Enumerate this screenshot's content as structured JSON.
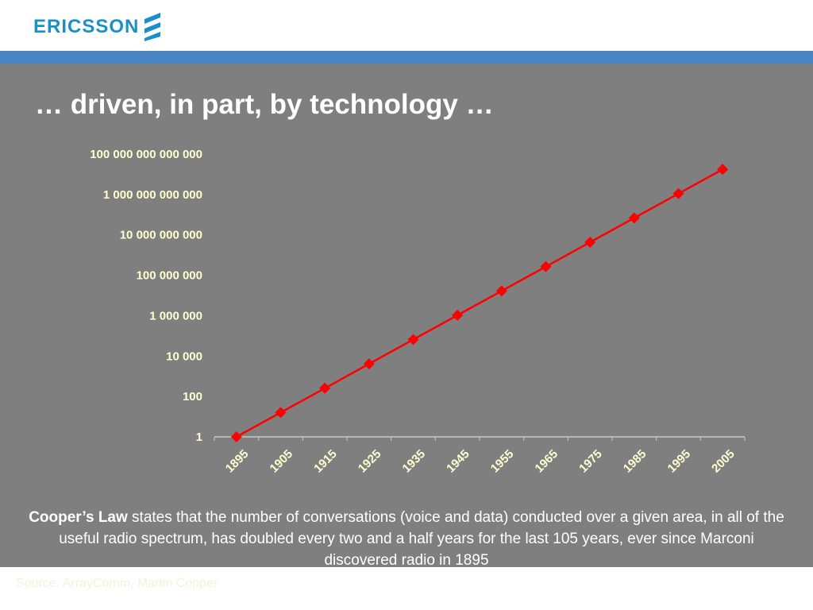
{
  "brand": {
    "name": "ERICSSON",
    "color": "#1a8fc8",
    "icon": "ericsson-logo-icon"
  },
  "colors": {
    "band": "#4a86c6",
    "background": "#7f7f7f",
    "series": "#ff0000",
    "tick_labels": "#ffffd0"
  },
  "slide": {
    "title": "… driven, in part, by technology …",
    "caption_bold": "Cooper’s Law",
    "caption_rest": " states that the number of conversations (voice and data) conducted over a given area, in all of the useful radio spectrum, has doubled every two and a half years for the last 105 years, ever since Marconi discovered radio in 1895",
    "source": "Source: ArrayComm, Martin Copper"
  },
  "chart_data": {
    "type": "line",
    "scale": "log10",
    "title": "",
    "xlabel": "",
    "ylabel": "",
    "categories": [
      "1895",
      "1905",
      "1915",
      "1925",
      "1935",
      "1945",
      "1955",
      "1965",
      "1975",
      "1985",
      "1995",
      "2005"
    ],
    "y_ticks": [
      "1",
      "100",
      "10 000",
      "1 000 000",
      "100 000 000",
      "10 000 000 000",
      "1 000 000 000 000",
      "100 000 000 000 000"
    ],
    "y_tick_values": [
      1,
      100,
      10000,
      1000000,
      100000000,
      10000000000,
      1000000000000,
      100000000000000
    ],
    "ylim": [
      1,
      100000000000000
    ],
    "grid": false,
    "legend": "none",
    "series": [
      {
        "values": [
          1,
          16,
          256,
          4096,
          65536,
          1048576,
          16777216,
          268435456,
          4294967296,
          68719476736,
          1099511627776,
          17592186044416
        ]
      }
    ]
  }
}
